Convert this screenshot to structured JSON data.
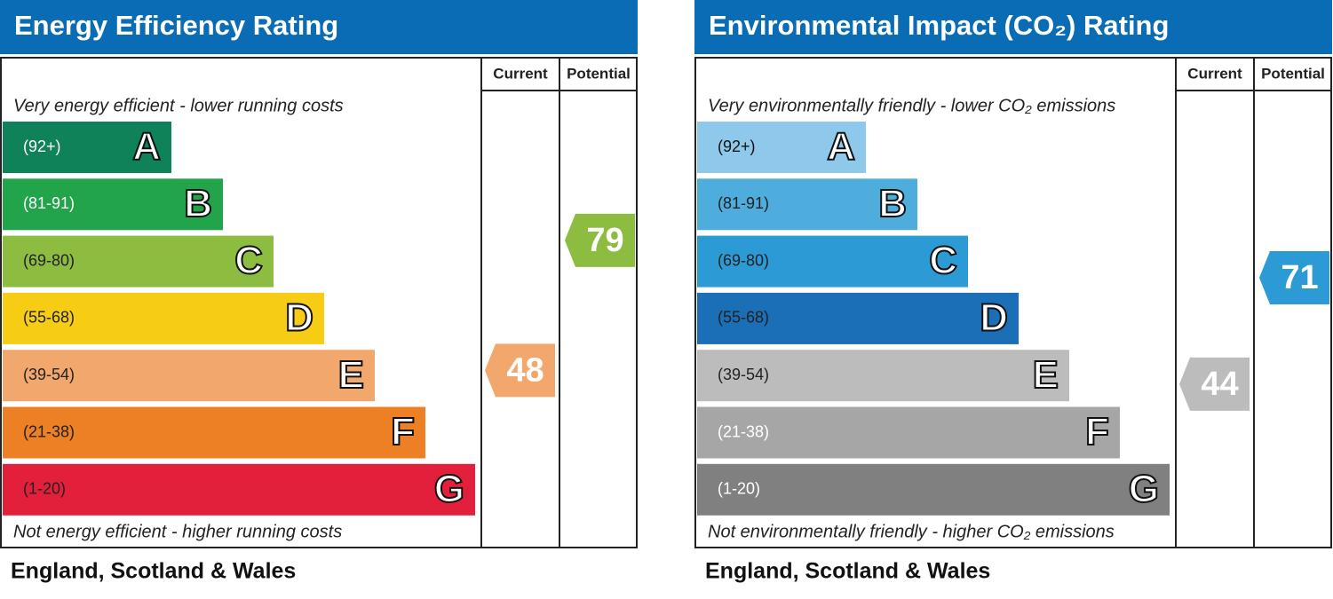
{
  "panels": [
    {
      "title": "Energy Efficiency Rating",
      "columns": [
        "Current",
        "Potential"
      ],
      "top_note": "Very energy efficient - lower running costs",
      "bottom_note": "Not energy efficient - higher running costs",
      "footer": "England, Scotland & Wales",
      "bands": [
        {
          "range": "(92+)",
          "letter": "A",
          "color": "#10825a",
          "text_color": "#ffffff"
        },
        {
          "range": "(81-91)",
          "letter": "B",
          "color": "#22a44b",
          "text_color": "#ffffff"
        },
        {
          "range": "(69-80)",
          "letter": "C",
          "color": "#8dbd40",
          "text_color": "#222222"
        },
        {
          "range": "(55-68)",
          "letter": "D",
          "color": "#f6cc14",
          "text_color": "#222222"
        },
        {
          "range": "(39-54)",
          "letter": "E",
          "color": "#f2a86c",
          "text_color": "#222222"
        },
        {
          "range": "(21-38)",
          "letter": "F",
          "color": "#ed7f24",
          "text_color": "#222222"
        },
        {
          "range": "(1-20)",
          "letter": "G",
          "color": "#e3203b",
          "text_color": "#222222"
        }
      ],
      "current": {
        "value": 48,
        "color": "#f2a86c"
      },
      "potential": {
        "value": 79,
        "color": "#8dbd40"
      }
    },
    {
      "title": "Environmental Impact (CO₂) Rating",
      "columns": [
        "Current",
        "Potential"
      ],
      "top_note": "Very environmentally friendly - lower CO₂ emissions",
      "bottom_note": "Not environmentally friendly - higher CO₂ emissions",
      "footer": "England, Scotland & Wales",
      "bands": [
        {
          "range": "(92+)",
          "letter": "A",
          "color": "#8ec9ec",
          "text_color": "#111111"
        },
        {
          "range": "(81-91)",
          "letter": "B",
          "color": "#4fadde",
          "text_color": "#222222"
        },
        {
          "range": "(69-80)",
          "letter": "C",
          "color": "#2c9ad4",
          "text_color": "#222222"
        },
        {
          "range": "(55-68)",
          "letter": "D",
          "color": "#1a6fb7",
          "text_color": "#222222"
        },
        {
          "range": "(39-54)",
          "letter": "E",
          "color": "#bcbcbc",
          "text_color": "#222222"
        },
        {
          "range": "(21-38)",
          "letter": "F",
          "color": "#a6a6a6",
          "text_color": "#ffffff"
        },
        {
          "range": "(1-20)",
          "letter": "G",
          "color": "#808080",
          "text_color": "#ffffff"
        }
      ],
      "current": {
        "value": 44,
        "color": "#bcbcbc"
      },
      "potential": {
        "value": 71,
        "color": "#2c9ad4"
      }
    }
  ]
}
